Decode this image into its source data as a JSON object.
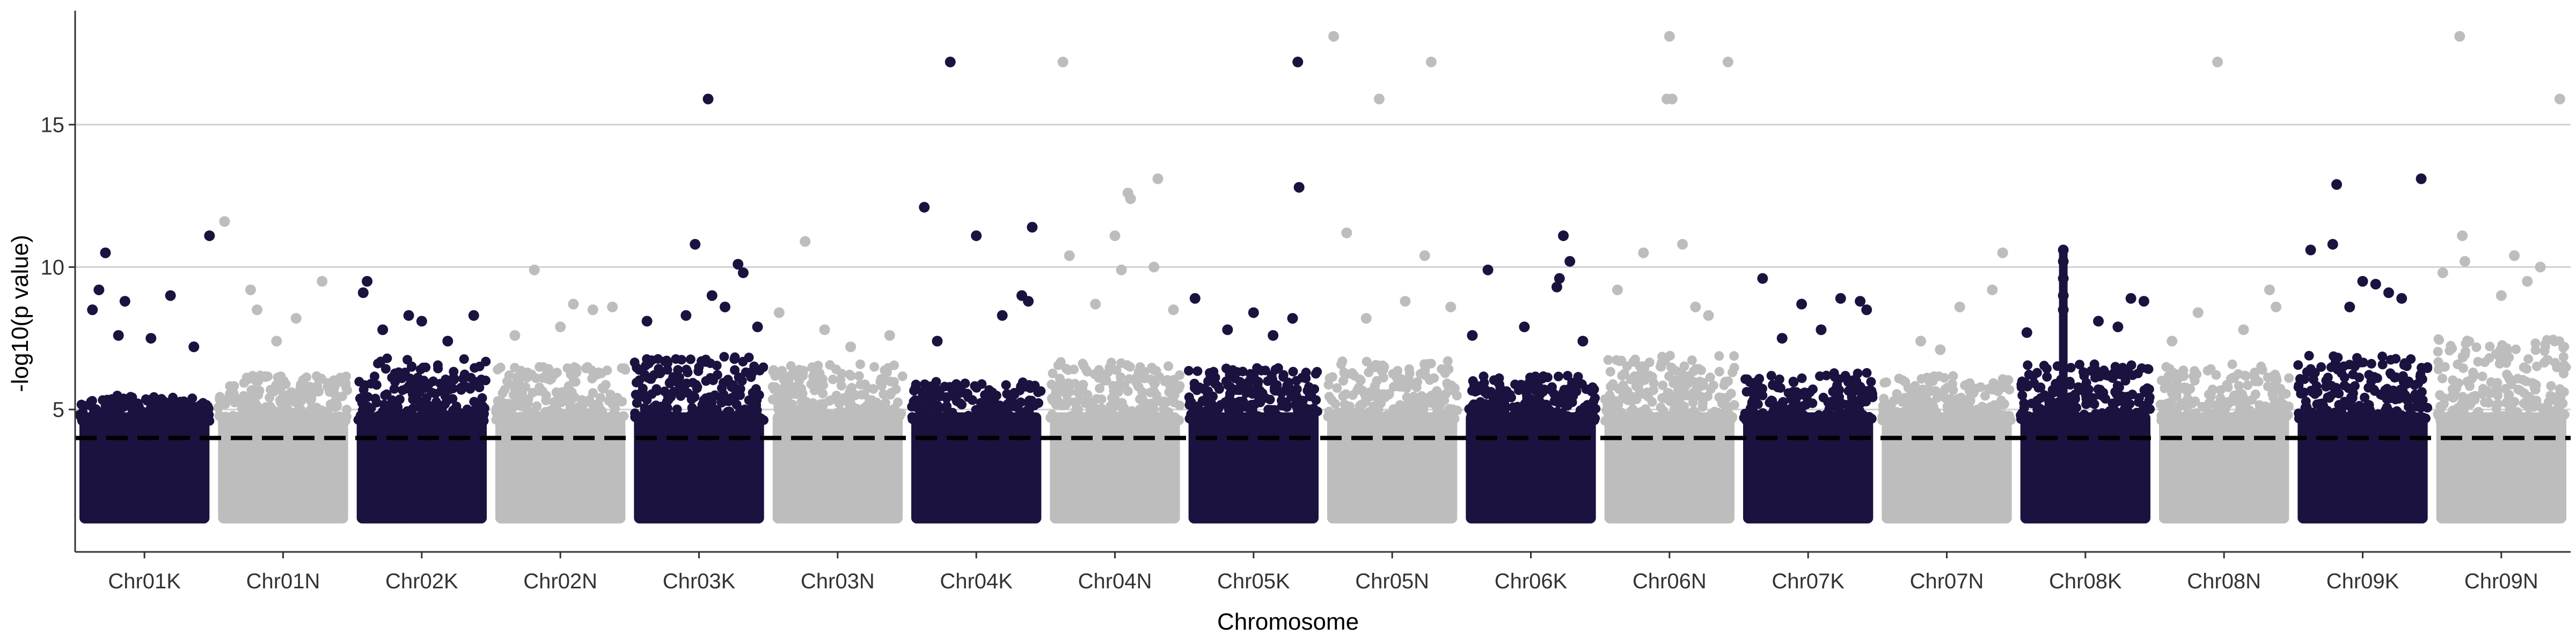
{
  "chart_data": {
    "type": "scatter",
    "title": "",
    "xlabel": "Chromosome",
    "ylabel": "-log10(p value)",
    "ylim": [
      0,
      19
    ],
    "yticks": [
      5,
      10,
      15
    ],
    "grid": "horizontal lines at 10 and 15 (y=5 coincides with reference lines)",
    "legend": "none",
    "colors": {
      "odd": "#1c1240",
      "even": "#bdbdbd",
      "threshold": "#000000"
    },
    "threshold": 4,
    "categories": [
      "Chr01K",
      "Chr01N",
      "Chr02K",
      "Chr02N",
      "Chr03K",
      "Chr03N",
      "Chr04K",
      "Chr04N",
      "Chr05K",
      "Chr05N",
      "Chr06K",
      "Chr06N",
      "Chr07K",
      "Chr07N",
      "Chr08K",
      "Chr08N",
      "Chr09K",
      "Chr09N"
    ],
    "series": [
      {
        "category": "Chr01K",
        "color": "#1c1240",
        "dense_max": 5.5,
        "peaks": [
          [
            0.2,
            10.5
          ],
          [
            0.15,
            9.2
          ],
          [
            0.35,
            8.8
          ],
          [
            0.7,
            9.0
          ],
          [
            0.88,
            7.2
          ],
          [
            1.0,
            11.1
          ],
          [
            0.55,
            7.5
          ],
          [
            0.1,
            8.5
          ],
          [
            0.3,
            7.6
          ]
        ]
      },
      {
        "category": "Chr01N",
        "color": "#bdbdbd",
        "dense_max": 6.2,
        "peaks": [
          [
            0.05,
            11.6
          ],
          [
            0.25,
            9.2
          ],
          [
            0.3,
            8.5
          ],
          [
            0.8,
            9.5
          ],
          [
            0.6,
            8.2
          ],
          [
            0.45,
            7.4
          ]
        ]
      },
      {
        "category": "Chr02K",
        "color": "#1c1240",
        "dense_max": 6.8,
        "peaks": [
          [
            0.08,
            9.5
          ],
          [
            0.05,
            9.1
          ],
          [
            0.4,
            8.3
          ],
          [
            0.5,
            8.1
          ],
          [
            0.9,
            8.3
          ],
          [
            0.2,
            7.8
          ],
          [
            0.7,
            7.4
          ]
        ]
      },
      {
        "category": "Chr02N",
        "color": "#bdbdbd",
        "dense_max": 6.5,
        "peaks": [
          [
            0.3,
            9.9
          ],
          [
            0.6,
            8.7
          ],
          [
            0.75,
            8.5
          ],
          [
            0.9,
            8.6
          ],
          [
            0.15,
            7.6
          ],
          [
            0.5,
            7.9
          ]
        ]
      },
      {
        "category": "Chr03K",
        "color": "#1c1240",
        "dense_max": 6.9,
        "peaks": [
          [
            0.57,
            15.9
          ],
          [
            0.47,
            10.8
          ],
          [
            0.8,
            10.1
          ],
          [
            0.84,
            9.8
          ],
          [
            0.1,
            8.1
          ],
          [
            0.6,
            9.0
          ],
          [
            0.4,
            8.3
          ],
          [
            0.7,
            8.6
          ],
          [
            0.95,
            7.9
          ]
        ]
      },
      {
        "category": "Chr03N",
        "color": "#bdbdbd",
        "dense_max": 6.6,
        "peaks": [
          [
            0.25,
            10.9
          ],
          [
            0.05,
            8.4
          ],
          [
            0.4,
            7.8
          ],
          [
            0.9,
            7.6
          ],
          [
            0.6,
            7.2
          ]
        ]
      },
      {
        "category": "Chr04K",
        "color": "#1c1240",
        "dense_max": 6.0,
        "peaks": [
          [
            0.3,
            17.2
          ],
          [
            0.1,
            12.1
          ],
          [
            0.5,
            11.1
          ],
          [
            0.93,
            11.4
          ],
          [
            0.85,
            9.0
          ],
          [
            0.9,
            8.8
          ],
          [
            0.7,
            8.3
          ],
          [
            0.2,
            7.4
          ]
        ]
      },
      {
        "category": "Chr04N",
        "color": "#bdbdbd",
        "dense_max": 6.7,
        "peaks": [
          [
            0.1,
            17.2
          ],
          [
            0.15,
            10.4
          ],
          [
            0.5,
            11.1
          ],
          [
            0.6,
            12.6
          ],
          [
            0.62,
            12.4
          ],
          [
            0.83,
            13.1
          ],
          [
            0.8,
            10.0
          ],
          [
            0.55,
            9.9
          ],
          [
            0.35,
            8.7
          ],
          [
            0.95,
            8.5
          ]
        ]
      },
      {
        "category": "Chr05K",
        "color": "#1c1240",
        "dense_max": 6.5,
        "peaks": [
          [
            0.84,
            17.2
          ],
          [
            0.85,
            12.8
          ],
          [
            0.05,
            8.9
          ],
          [
            0.5,
            8.4
          ],
          [
            0.8,
            8.2
          ],
          [
            0.3,
            7.8
          ],
          [
            0.65,
            7.6
          ]
        ]
      },
      {
        "category": "Chr05N",
        "color": "#bdbdbd",
        "dense_max": 6.7,
        "peaks": [
          [
            0.05,
            18.1
          ],
          [
            0.4,
            15.9
          ],
          [
            0.8,
            17.2
          ],
          [
            0.15,
            11.2
          ],
          [
            0.75,
            10.4
          ],
          [
            0.6,
            8.8
          ],
          [
            0.95,
            8.6
          ],
          [
            0.3,
            8.2
          ]
        ]
      },
      {
        "category": "Chr06K",
        "color": "#1c1240",
        "dense_max": 6.2,
        "peaks": [
          [
            0.17,
            9.9
          ],
          [
            0.75,
            11.1
          ],
          [
            0.8,
            10.2
          ],
          [
            0.72,
            9.6
          ],
          [
            0.05,
            7.6
          ],
          [
            0.45,
            7.9
          ],
          [
            0.7,
            9.3
          ],
          [
            0.9,
            7.4
          ]
        ]
      },
      {
        "category": "Chr06N",
        "color": "#bdbdbd",
        "dense_max": 6.9,
        "peaks": [
          [
            0.5,
            18.1
          ],
          [
            0.48,
            15.9
          ],
          [
            0.52,
            15.9
          ],
          [
            0.95,
            17.2
          ],
          [
            0.3,
            10.5
          ],
          [
            0.6,
            10.8
          ],
          [
            0.1,
            9.2
          ],
          [
            0.7,
            8.6
          ],
          [
            0.8,
            8.3
          ]
        ]
      },
      {
        "category": "Chr07K",
        "color": "#1c1240",
        "dense_max": 6.3,
        "peaks": [
          [
            0.15,
            9.6
          ],
          [
            0.45,
            8.7
          ],
          [
            0.75,
            8.9
          ],
          [
            0.9,
            8.8
          ],
          [
            0.95,
            8.5
          ],
          [
            0.3,
            7.5
          ],
          [
            0.6,
            7.8
          ]
        ]
      },
      {
        "category": "Chr07N",
        "color": "#bdbdbd",
        "dense_max": 6.2,
        "peaks": [
          [
            0.93,
            10.5
          ],
          [
            0.6,
            8.6
          ],
          [
            0.85,
            9.2
          ],
          [
            0.3,
            7.4
          ],
          [
            0.45,
            7.1
          ]
        ]
      },
      {
        "category": "Chr08K",
        "color": "#1c1240",
        "dense_max": 6.6,
        "peaks": [
          [
            0.33,
            10.6
          ],
          [
            0.33,
            10.2
          ],
          [
            0.33,
            9.6
          ],
          [
            0.33,
            9.0
          ],
          [
            0.33,
            8.5
          ],
          [
            0.85,
            8.9
          ],
          [
            0.95,
            8.8
          ],
          [
            0.6,
            8.1
          ],
          [
            0.05,
            7.7
          ],
          [
            0.75,
            7.9
          ]
        ]
      },
      {
        "category": "Chr08N",
        "color": "#bdbdbd",
        "dense_max": 6.6,
        "peaks": [
          [
            0.45,
            17.2
          ],
          [
            0.85,
            9.2
          ],
          [
            0.9,
            8.6
          ],
          [
            0.3,
            8.4
          ],
          [
            0.65,
            7.8
          ],
          [
            0.1,
            7.4
          ]
        ]
      },
      {
        "category": "Chr09K",
        "color": "#1c1240",
        "dense_max": 6.9,
        "peaks": [
          [
            0.3,
            12.9
          ],
          [
            0.27,
            10.8
          ],
          [
            0.1,
            10.6
          ],
          [
            0.95,
            13.1
          ],
          [
            0.5,
            9.5
          ],
          [
            0.6,
            9.4
          ],
          [
            0.7,
            9.1
          ],
          [
            0.8,
            8.9
          ],
          [
            0.4,
            8.6
          ]
        ]
      },
      {
        "category": "Chr09N",
        "color": "#bdbdbd",
        "dense_max": 7.5,
        "peaks": [
          [
            0.18,
            18.1
          ],
          [
            0.95,
            15.9
          ],
          [
            0.2,
            11.1
          ],
          [
            0.6,
            10.4
          ],
          [
            0.22,
            10.2
          ],
          [
            0.8,
            10.0
          ],
          [
            0.05,
            9.8
          ],
          [
            0.7,
            9.5
          ],
          [
            0.5,
            9.0
          ]
        ]
      }
    ]
  }
}
